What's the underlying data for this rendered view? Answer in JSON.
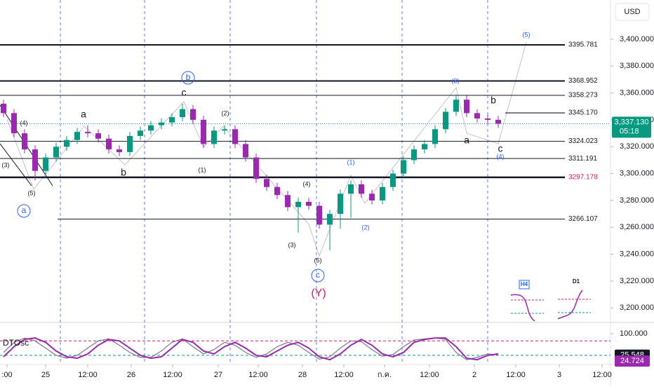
{
  "chart_data": {
    "type": "candlestick",
    "currency": "USD",
    "x": [
      1,
      4,
      7,
      10,
      13,
      16,
      19,
      22,
      25,
      28,
      31,
      34,
      37,
      40,
      43,
      46,
      49,
      52,
      55,
      58,
      61,
      64,
      67,
      70,
      73,
      76,
      79,
      82,
      85,
      88,
      91,
      94,
      97,
      100,
      103,
      106,
      109,
      112,
      115,
      118,
      121,
      124,
      127,
      130,
      133,
      136,
      139,
      142
    ],
    "open": [
      3352,
      3345,
      3330,
      3318,
      3302,
      3312,
      3320,
      3325,
      3331,
      3330,
      3326,
      3318,
      3316,
      3328,
      3332,
      3336,
      3338,
      3342,
      3348,
      3340,
      3322,
      3332,
      3333,
      3322,
      3312,
      3296,
      3290,
      3284,
      3275,
      3279,
      3276,
      3262,
      3270,
      3285,
      3292,
      3285,
      3280,
      3290,
      3300,
      3310,
      3318,
      3322,
      3333,
      3346,
      3355,
      3345,
      3341,
      3340
    ],
    "high": [
      3355,
      3348,
      3333,
      3321,
      3315,
      3323,
      3328,
      3334,
      3336,
      3333,
      3329,
      3321,
      3331,
      3335,
      3339,
      3341,
      3345,
      3352,
      3351,
      3343,
      3335,
      3336,
      3336,
      3325,
      3315,
      3299,
      3293,
      3287,
      3282,
      3282,
      3279,
      3273,
      3288,
      3295,
      3295,
      3288,
      3293,
      3303,
      3313,
      3321,
      3325,
      3336,
      3349,
      3359,
      3358,
      3348,
      3344,
      3343
    ],
    "low": [
      3342,
      3327,
      3315,
      3295,
      3299,
      3309,
      3317,
      3322,
      3327,
      3323,
      3315,
      3313,
      3313,
      3325,
      3329,
      3333,
      3335,
      3339,
      3337,
      3319,
      3319,
      3329,
      3319,
      3309,
      3293,
      3287,
      3281,
      3272,
      3256,
      3273,
      3259,
      3243,
      3259,
      3267,
      3282,
      3277,
      3277,
      3287,
      3297,
      3307,
      3315,
      3319,
      3330,
      3343,
      3342,
      3338,
      3337,
      3334
    ],
    "close": [
      3345,
      3330,
      3318,
      3302,
      3312,
      3320,
      3325,
      3331,
      3330,
      3326,
      3318,
      3316,
      3328,
      3332,
      3336,
      3338,
      3342,
      3348,
      3340,
      3322,
      3332,
      3333,
      3322,
      3312,
      3296,
      3290,
      3284,
      3275,
      3279,
      3276,
      3262,
      3270,
      3285,
      3292,
      3285,
      3280,
      3290,
      3300,
      3310,
      3318,
      3322,
      3333,
      3346,
      3355,
      3345,
      3341,
      3340,
      3337.13
    ],
    "up_color": "#089981",
    "down_color": "#9c27b0",
    "xlim": [
      0,
      174
    ],
    "xticks": [
      {
        "value": 2,
        "label": ":00"
      },
      {
        "value": 13,
        "label": "25"
      },
      {
        "value": 25,
        "label": "12:00"
      },
      {
        "value": 37.4,
        "label": "26"
      },
      {
        "value": 49.2,
        "label": "12:00"
      },
      {
        "value": 62.2,
        "label": "27"
      },
      {
        "value": 73.6,
        "label": "12:00"
      },
      {
        "value": 86.2,
        "label": "28"
      },
      {
        "value": 98,
        "label": "12:00"
      },
      {
        "value": 109.6,
        "label": "ก.ค."
      },
      {
        "value": 122.4,
        "label": "12:00"
      },
      {
        "value": 135.2,
        "label": "2"
      },
      {
        "value": 147,
        "label": "12:00"
      },
      {
        "value": 159.4,
        "label": "3"
      },
      {
        "value": 171.6,
        "label": "12:00"
      }
    ],
    "session_breaks": [
      17.2,
      41.2,
      65.6,
      90.2,
      114.6,
      139
    ],
    "ylim": [
      3189.2,
      3429.2
    ],
    "yticks": [
      {
        "value": 3200,
        "label": "3,200.000"
      },
      {
        "value": 3220,
        "label": "3,220.000"
      },
      {
        "value": 3240,
        "label": "3,240.000"
      },
      {
        "value": 3260,
        "label": "3,260.000"
      },
      {
        "value": 3280,
        "label": "3,280.000"
      },
      {
        "value": 3300,
        "label": "3,300.000"
      },
      {
        "value": 3320,
        "label": "3,320.000"
      },
      {
        "value": 3340,
        "label": "3,340.000"
      },
      {
        "value": 3360,
        "label": "3,360.000"
      },
      {
        "value": 3380,
        "label": "3,380.000"
      },
      {
        "value": 3400,
        "label": "3,400.000"
      }
    ],
    "levels": [
      3395.781,
      3368.952,
      3358.273,
      {
        "value": 3345.17,
        "label": "3345.170"
      },
      3324.023,
      3311.191,
      3297.178,
      3266.107
    ],
    "current_price": {
      "value": 3337.13,
      "label": "3,337.130"
    },
    "countdown": "05:18",
    "annotations": [
      "(4)",
      "(3)",
      "(5)",
      "a",
      "a",
      "b",
      "c",
      "b",
      "(2)",
      "(1)",
      "(4)",
      "(3)",
      "(5)",
      "c",
      "(Y)",
      "(1)",
      "(2)",
      "(3)",
      "a",
      "b",
      "c",
      "(4)",
      "(5)"
    ],
    "insets": [
      "H4",
      "D1"
    ],
    "oscillator": {
      "name": "DTOsc",
      "ylim": [
        -6.5,
        133.9
      ],
      "yticks": [
        {
          "value": 100,
          "label": "100.000"
        }
      ],
      "levels": [
        75,
        25
      ],
      "series": [
        {
          "color": "#9c27b0",
          "values": [
            20,
            55,
            80,
            85,
            70,
            40,
            20,
            15,
            30,
            60,
            80,
            75,
            50,
            25,
            15,
            20,
            50,
            80,
            70,
            40,
            30,
            55,
            70,
            50,
            25,
            20,
            40,
            60,
            70,
            50,
            20,
            10,
            30,
            60,
            80,
            60,
            30,
            20,
            35,
            70,
            80,
            85,
            85,
            55,
            15,
            10,
            25,
            30
          ]
        },
        {
          "color": "#787b86",
          "values": [
            35,
            70,
            85,
            75,
            50,
            25,
            15,
            25,
            50,
            75,
            82,
            60,
            35,
            18,
            18,
            40,
            70,
            82,
            55,
            30,
            45,
            70,
            60,
            35,
            18,
            30,
            55,
            70,
            60,
            35,
            12,
            20,
            50,
            75,
            72,
            45,
            22,
            28,
            55,
            78,
            82,
            85,
            80,
            35,
            10,
            18,
            30,
            26
          ]
        }
      ],
      "readouts": [
        {
          "value": 25.548,
          "label": "25.548"
        },
        {
          "value": 24.724,
          "label": "24.724"
        }
      ]
    }
  }
}
